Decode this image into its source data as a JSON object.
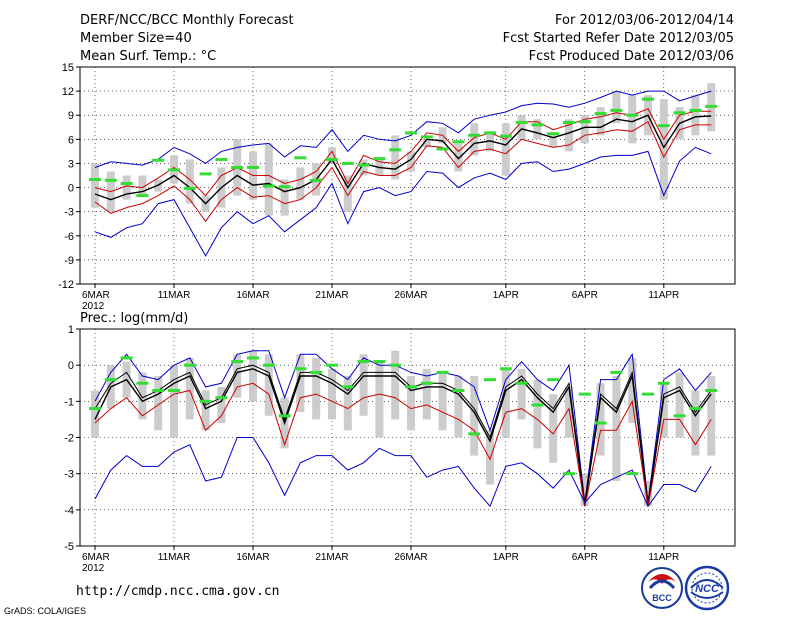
{
  "header": {
    "title": "DERF/NCC/BCC Monthly Forecast",
    "member_size": "Member Size=40",
    "period": "For 2012/03/06-2012/04/14",
    "start_date": "Fcst Started Refer Date 2012/03/05",
    "produced_date": "Fcst Produced Date 2012/03/06"
  },
  "footer": {
    "url": "http://cmdp.ncc.cma.gov.cn",
    "credit": "GrADS: COLA/IGES",
    "logo_bcc": "BCC",
    "logo_ncc": "NCC"
  },
  "colors": {
    "ensemble_mean": "#000000",
    "member_max_min": "#0000cc",
    "spread_band": "#cc0000",
    "member_box": "#cccccc",
    "median_mark": "#33dd33"
  },
  "chart_data": [
    {
      "type": "line",
      "title": "Mean Surf. Temp.: °C",
      "ylabel": "°C",
      "ylim": [
        -12,
        15
      ],
      "yticks": [
        -12,
        -9,
        -6,
        -3,
        0,
        3,
        6,
        9,
        12,
        15
      ],
      "ytick_labels": [
        "-12",
        "-9",
        "-6",
        "-3",
        "0",
        "3",
        "6",
        "9",
        "12",
        "15"
      ],
      "xticks": [
        {
          "day": 1,
          "label": "6MAR",
          "sublabel": "2012"
        },
        {
          "day": 6,
          "label": "11MAR"
        },
        {
          "day": 11,
          "label": "16MAR"
        },
        {
          "day": 16,
          "label": "21MAR"
        },
        {
          "day": 21,
          "label": "26MAR"
        },
        {
          "day": 27,
          "label": "1APR"
        },
        {
          "day": 32,
          "label": "6APR"
        },
        {
          "day": 37,
          "label": "11APR"
        }
      ],
      "x": [
        1,
        2,
        3,
        4,
        5,
        6,
        7,
        8,
        9,
        10,
        11,
        12,
        13,
        14,
        15,
        16,
        17,
        18,
        19,
        20,
        21,
        22,
        23,
        24,
        25,
        26,
        27,
        28,
        29,
        30,
        31,
        32,
        33,
        34,
        35,
        36,
        37,
        38,
        39,
        40
      ],
      "grid": true,
      "series": [
        {
          "name": "max",
          "color": "#0000cc",
          "values": [
            2.5,
            3.2,
            3,
            2.8,
            3.5,
            5,
            4.2,
            3,
            4.5,
            5,
            5.3,
            5.5,
            3.8,
            5.2,
            5,
            7.2,
            4.5,
            6.5,
            6,
            5.8,
            6.5,
            8.2,
            8,
            6.8,
            8.5,
            9,
            9.4,
            10.2,
            10.5,
            10.4,
            10,
            10.5,
            11.2,
            12,
            11.5,
            12,
            12,
            10.8,
            11.4,
            12
          ]
        },
        {
          "name": "upper",
          "color": "#cc0000",
          "values": [
            0,
            -0.5,
            0.2,
            0,
            1.2,
            2.5,
            1,
            -1,
            1.5,
            2.5,
            1.5,
            1.5,
            0.5,
            1,
            2,
            4.5,
            0.5,
            4,
            3.2,
            3,
            4.5,
            6.8,
            6.5,
            4.5,
            6.2,
            6.8,
            6,
            8.2,
            8.2,
            7.2,
            7.8,
            8.5,
            8.8,
            9.3,
            9,
            9.8,
            6,
            9,
            9.5,
            9.5
          ]
        },
        {
          "name": "mean",
          "color": "#000000",
          "values": [
            -0.8,
            -1.5,
            -0.8,
            -0.5,
            0.3,
            1.5,
            0,
            -2,
            0,
            1.5,
            0.3,
            0.5,
            -0.5,
            0,
            1,
            3.5,
            0,
            3,
            2.5,
            2.3,
            3.5,
            6,
            5.8,
            3.6,
            5.5,
            5.8,
            5.3,
            7.3,
            6.8,
            6.2,
            6.8,
            7.5,
            7.5,
            8.5,
            8.2,
            9,
            5,
            8,
            8.8,
            8.9
          ]
        },
        {
          "name": "lower",
          "color": "#cc0000",
          "values": [
            -1.8,
            -3.2,
            -2.5,
            -2,
            -1,
            0.2,
            -1.5,
            -4.2,
            -1.5,
            0,
            -1.2,
            -1,
            -2,
            -1.5,
            0,
            2.5,
            -1,
            2,
            1.5,
            1.5,
            2.5,
            5.2,
            5,
            2.5,
            4.5,
            4.8,
            4.2,
            6,
            5.5,
            5,
            5.3,
            6.5,
            6.8,
            7.2,
            7,
            8.2,
            3.8,
            7.2,
            7.8,
            7.8
          ]
        },
        {
          "name": "min",
          "color": "#0000cc",
          "values": [
            -5.5,
            -6.2,
            -5,
            -4.5,
            -2,
            -1.5,
            -5,
            -8.5,
            -5,
            -3,
            -4.5,
            -3.5,
            -5.5,
            -4,
            -2.5,
            0.5,
            -4.5,
            -0.5,
            0,
            -1,
            -0.5,
            2,
            1.8,
            0,
            1.2,
            1.8,
            1,
            3,
            3.2,
            2,
            2.3,
            3,
            3.8,
            4,
            4,
            4.5,
            -1,
            3.3,
            5,
            4.2
          ]
        }
      ],
      "boxes": {
        "low": [
          -2.5,
          -3,
          -1.5,
          -1,
          -0.5,
          0.5,
          -2,
          -3,
          -2.5,
          -1,
          -1.5,
          -3.5,
          -3.5,
          -1.5,
          -1,
          3,
          -3,
          1.5,
          1.5,
          1,
          2,
          5,
          5.5,
          2,
          4,
          4.5,
          1.5,
          6,
          6,
          5,
          4.5,
          5.5,
          6.5,
          8,
          5.5,
          6.5,
          -1.5,
          6,
          6.5,
          7
        ],
        "high": [
          3,
          2,
          1.5,
          1.5,
          1,
          4,
          3.5,
          -1,
          2.5,
          6,
          4.5,
          5.5,
          1,
          2.5,
          3,
          5,
          1.5,
          3.5,
          3.5,
          6.5,
          4.5,
          6,
          7.5,
          5.5,
          8,
          7,
          8,
          9,
          8.5,
          6.5,
          8.5,
          9,
          10,
          12,
          11.5,
          11.5,
          11,
          10,
          11.5,
          13
        ]
      },
      "medians": [
        1,
        0.9,
        0.5,
        -1,
        3.4,
        2.2,
        -0.1,
        1.7,
        3.5,
        2.5,
        2.5,
        0.2,
        0.1,
        3.7,
        0.9,
        3.5,
        3,
        2.8,
        3.6,
        4.7,
        6.8,
        6.3,
        4.8,
        5.7,
        6.5,
        6.8,
        6.4,
        8.1,
        7.8,
        6.7,
        8.1,
        8.2,
        9.2,
        9.6,
        9,
        11,
        7.7,
        9.3,
        9.6,
        10.1
      ]
    },
    {
      "type": "line",
      "title": "Prec.: log(mm/d)",
      "ylabel": "log(mm/d)",
      "ylim": [
        -5,
        1
      ],
      "yticks": [
        -5,
        -4,
        -3,
        -2,
        -1,
        0,
        1
      ],
      "ytick_labels": [
        "-5",
        "-4",
        "-3",
        "-2",
        "-1",
        "0",
        "1"
      ],
      "xticks": [
        {
          "day": 1,
          "label": "6MAR",
          "sublabel": "2012"
        },
        {
          "day": 6,
          "label": "11MAR"
        },
        {
          "day": 11,
          "label": "16MAR"
        },
        {
          "day": 16,
          "label": "21MAR"
        },
        {
          "day": 21,
          "label": "26MAR"
        },
        {
          "day": 27,
          "label": "1APR"
        },
        {
          "day": 32,
          "label": "6APR"
        },
        {
          "day": 37,
          "label": "11APR"
        }
      ],
      "x": [
        1,
        2,
        3,
        4,
        5,
        6,
        7,
        8,
        9,
        10,
        11,
        12,
        13,
        14,
        15,
        16,
        17,
        18,
        19,
        20,
        21,
        22,
        23,
        24,
        25,
        26,
        27,
        28,
        29,
        30,
        31,
        32,
        33,
        34,
        35,
        36,
        37,
        38,
        39,
        40
      ],
      "grid": true,
      "series": [
        {
          "name": "max",
          "color": "#0000cc",
          "values": [
            -1,
            -0.2,
            0.3,
            -0.3,
            -0.4,
            0,
            0.2,
            -0.6,
            -0.5,
            0.3,
            0.4,
            0.4,
            -0.9,
            0.3,
            0.3,
            -0.1,
            -0.4,
            0.2,
            0,
            0,
            -0.2,
            -0.3,
            -0.2,
            -0.3,
            -0.6,
            -1.8,
            -0.4,
            0.1,
            -0.4,
            -0.7,
            0,
            -3.8,
            -0.4,
            -0.4,
            0.3,
            -3.8,
            -0.4,
            -0.1,
            -0.7,
            -0.2
          ]
        },
        {
          "name": "upper",
          "color": "#000000",
          "values": [
            -1.2,
            -0.5,
            -0.2,
            -0.9,
            -0.7,
            -0.4,
            -0.2,
            -1.1,
            -0.9,
            -0.1,
            0,
            -0.2,
            -1.5,
            -0.2,
            -0.2,
            -0.4,
            -0.7,
            -0.2,
            -0.2,
            -0.2,
            -0.6,
            -0.5,
            -0.5,
            -0.7,
            -1.2,
            -2,
            -0.6,
            -0.3,
            -0.8,
            -1.2,
            -0.5,
            -3.8,
            -0.8,
            -1.2,
            -0.2,
            -3.8,
            -0.8,
            -0.6,
            -1.3,
            -0.7
          ]
        },
        {
          "name": "mean",
          "color": "#000000",
          "values": [
            -1.5,
            -0.6,
            -0.4,
            -1,
            -0.8,
            -0.5,
            -0.3,
            -1.2,
            -1,
            -0.2,
            -0.1,
            -0.3,
            -1.6,
            -0.3,
            -0.3,
            -0.5,
            -0.8,
            -0.3,
            -0.3,
            -0.3,
            -0.7,
            -0.6,
            -0.6,
            -0.8,
            -1.3,
            -2.1,
            -0.7,
            -0.4,
            -0.9,
            -1.3,
            -0.6,
            -3.9,
            -0.9,
            -1.3,
            -0.3,
            -3.9,
            -0.9,
            -0.7,
            -1.4,
            -0.8
          ]
        },
        {
          "name": "lower",
          "color": "#cc0000",
          "values": [
            -1.6,
            -1.2,
            -0.9,
            -1.4,
            -1.1,
            -0.8,
            -0.7,
            -1.8,
            -1.4,
            -0.6,
            -0.5,
            -0.8,
            -2.2,
            -0.9,
            -0.8,
            -1,
            -1.2,
            -0.9,
            -0.8,
            -0.9,
            -1.2,
            -1.1,
            -1.3,
            -1.5,
            -1.8,
            -2.6,
            -1.3,
            -1.2,
            -1.5,
            -1.9,
            -1.2,
            -3.9,
            -1.8,
            -1.8,
            -1,
            -3.9,
            -1.5,
            -1.5,
            -2.2,
            -1.5
          ]
        },
        {
          "name": "min",
          "color": "#0000cc",
          "values": [
            -3.7,
            -2.9,
            -2.5,
            -2.8,
            -2.8,
            -2.4,
            -2.2,
            -3.2,
            -3.1,
            -2,
            -2,
            -2.7,
            -3.6,
            -2.7,
            -2.5,
            -2.5,
            -2.9,
            -2.7,
            -2.3,
            -2.5,
            -2.5,
            -3.1,
            -2.9,
            -2.8,
            -3.4,
            -3.9,
            -2.8,
            -2.7,
            -3,
            -3.4,
            -2.9,
            -3.8,
            -3.3,
            -3.1,
            -2.9,
            -3.9,
            -3.3,
            -3.3,
            -3.5,
            -2.8
          ]
        }
      ],
      "boxes": {
        "low": [
          -2,
          -1.2,
          -0.9,
          -1.5,
          -1.8,
          -2,
          -1.5,
          -1.8,
          -1.6,
          -0.9,
          -1,
          -1.4,
          -2.3,
          -1.3,
          -1.5,
          -1.5,
          -1.8,
          -1.4,
          -2,
          -1.5,
          -1.8,
          -1.5,
          -1.8,
          -2,
          -2.5,
          -3.3,
          -2,
          -1.5,
          -2.3,
          -2.7,
          -2,
          -3.9,
          -2.5,
          -3.2,
          -1.6,
          -3.9,
          -2,
          -2,
          -2.5,
          -2.5
        ],
        "high": [
          -0.7,
          0,
          0.1,
          -0.2,
          -0.3,
          0,
          0.2,
          -0.7,
          -0.6,
          0.3,
          0.4,
          0.3,
          -0.9,
          0.3,
          0.2,
          -0.1,
          -0.3,
          0.3,
          0.1,
          0.4,
          -0.3,
          -0.1,
          -0.2,
          -0.3,
          -0.3,
          -1.8,
          -0.1,
          -0.1,
          -0.4,
          -0.8,
          -0.6,
          -3,
          -0.5,
          -0.3,
          0.2,
          -3.2,
          -0.5,
          -0.2,
          -0.7,
          -0.3
        ]
      },
      "medians": [
        -1.2,
        -0.4,
        0.2,
        -0.5,
        -0.7,
        -0.7,
        0,
        -1,
        -0.9,
        0.1,
        0.2,
        0,
        -1.4,
        -0.1,
        -0.2,
        0,
        -0.6,
        0.1,
        0.1,
        0,
        -0.6,
        -0.5,
        -0.2,
        -0.7,
        -1.9,
        -0.4,
        -0.1,
        -0.5,
        -1.1,
        -0.4,
        -3,
        -0.8,
        -1.6,
        -0.2,
        -3,
        -0.8,
        -0.5,
        -1.4,
        -1.2,
        -0.7
      ]
    }
  ]
}
